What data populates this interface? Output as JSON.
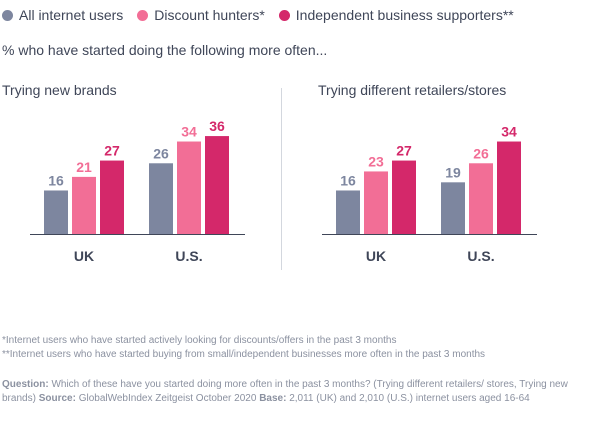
{
  "legend": [
    {
      "label": "All internet users",
      "color": "#7d869f"
    },
    {
      "label": "Discount hunters*",
      "color": "#f26e96"
    },
    {
      "label": "Independent business supporters**",
      "color": "#d4286a"
    }
  ],
  "subtitle": "% who have started doing the following more often...",
  "chart_data": [
    {
      "type": "bar",
      "title": "Trying new brands",
      "categories": [
        "UK",
        "U.S."
      ],
      "series": [
        {
          "name": "All internet users",
          "values": [
            16,
            26
          ]
        },
        {
          "name": "Discount hunters*",
          "values": [
            21,
            34
          ]
        },
        {
          "name": "Independent business supporters**",
          "values": [
            27,
            36
          ]
        }
      ],
      "ylim": [
        0,
        36
      ]
    },
    {
      "type": "bar",
      "title": "Trying different retailers/stores",
      "categories": [
        "UK",
        "U.S."
      ],
      "series": [
        {
          "name": "All internet users",
          "values": [
            16,
            19
          ]
        },
        {
          "name": "Discount hunters*",
          "values": [
            23,
            26
          ]
        },
        {
          "name": "Independent business supporters**",
          "values": [
            27,
            34
          ]
        }
      ],
      "ylim": [
        0,
        36
      ]
    }
  ],
  "footnotes": {
    "line1": "*Internet users who have started actively looking for discounts/offers in the past 3 months",
    "line2": "**Internet users who have started buying from small/independent businesses more often in the past 3 months"
  },
  "question": {
    "q_label": "Question:",
    "q_text": " Which of these have you started doing more often in the past 3 months? (Trying different retailers/ stores, Trying new brands) ",
    "source_label": "Source:",
    "source_text": " GlobalWebIndex Zeitgeist October 2020 ",
    "base_label": "Base:",
    "base_text": " 2,011 (UK) and 2,010 (U.S.) internet users aged 16-64"
  }
}
